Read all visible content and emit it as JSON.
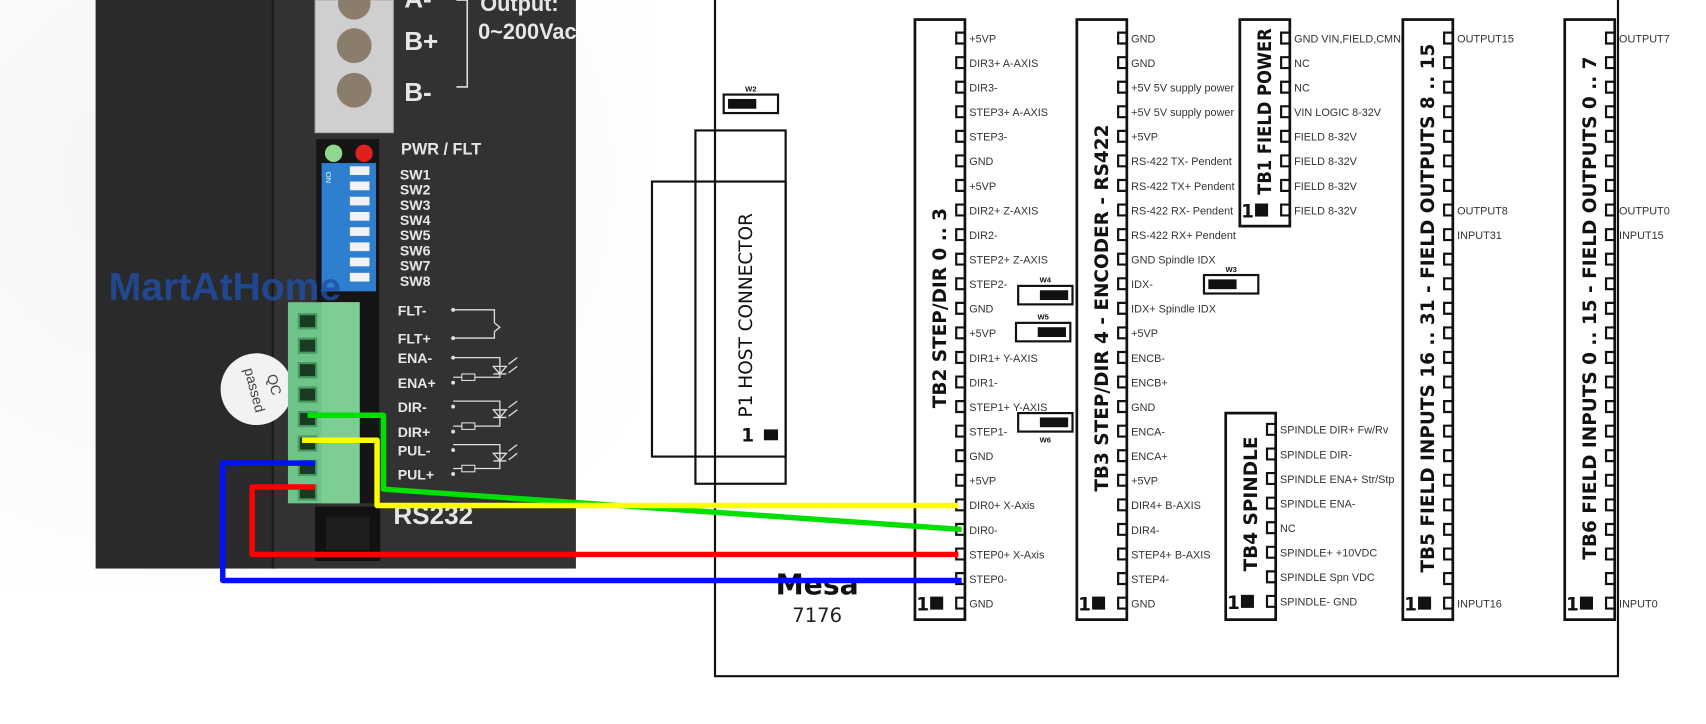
{
  "photo": {
    "terminal_labels": [
      "A-",
      "B+",
      "B-"
    ],
    "output_label": "Output:",
    "output_value": "0~200Vac",
    "led_label": "PWR / FLT",
    "dip_on": "ON",
    "dip_switches": [
      "SW1",
      "SW2",
      "SW3",
      "SW4",
      "SW5",
      "SW6",
      "SW7",
      "SW8"
    ],
    "watermark": "MartAtHome",
    "qc_sticker": [
      "QC",
      "passed"
    ],
    "signal_labels": [
      "FLT-",
      "FLT+",
      "ENA-",
      "ENA+",
      "DIR-",
      "DIR+",
      "PUL-",
      "PUL+"
    ],
    "port_label": "RS232",
    "colors": {
      "body": "#2b2b2d",
      "connector": "#6fc48a",
      "dip": "#2f7fd0",
      "led_power": "#8fd88f",
      "led_fault": "#e02020"
    }
  },
  "board": {
    "logo": "Mesa",
    "model": "7176",
    "p1": {
      "title": "P1 HOST CONNECTOR",
      "pin1": "1"
    },
    "jumpers": {
      "w2": "W2",
      "w3": "W3",
      "w4": "W4",
      "w5": "W5",
      "w6": "W6"
    },
    "pin1_marker": "1",
    "blocks": [
      {
        "id": "TB2",
        "title": "TB2  STEP/DIR 0 .. 3",
        "pins": [
          "+5VP",
          "DIR3+  A-AXIS",
          "DIR3-",
          "STEP3+ A-AXIS",
          "STEP3-",
          "GND",
          "+5VP",
          "DIR2+  Z-AXIS",
          "DIR2-",
          "STEP2+ Z-AXIS",
          "STEP2-",
          "GND",
          "+5VP",
          "DIR1+  Y-AXIS",
          "DIR1-",
          "STEP1+ Y-AXIS",
          "STEP1-",
          "GND",
          "+5VP",
          "DIR0+  X-Axis",
          "DIR0-",
          "STEP0+ X-Axis",
          "STEP0-",
          "GND"
        ]
      },
      {
        "id": "TB3",
        "title": "TB3  STEP/DIR 4  -  ENCODER  -  RS422",
        "pins": [
          "GND",
          "GND",
          "+5V 5V supply power",
          "+5V 5V supply power",
          "+5VP",
          "RS-422 TX-  Pendent",
          "RS-422 TX+  Pendent",
          "RS-422 RX-  Pendent",
          "RS-422 RX+  Pendent",
          "GND  Spindle IDX",
          "IDX-",
          "IDX+ Spindle IDX",
          "+5VP",
          "ENCB-",
          "ENCB+",
          "GND",
          "ENCA-",
          "ENCA+",
          "+5VP",
          "DIR4+  B-AXIS",
          "DIR4-",
          "STEP4+ B-AXIS",
          "STEP4-",
          "GND"
        ]
      },
      {
        "id": "TB1",
        "title": "TB1  FIELD  POWER",
        "pins": [
          "GND VIN,FIELD,CMN",
          "NC",
          "NC",
          "VIN LOGIC 8-32V",
          "FIELD 8-32V",
          "FIELD 8-32V",
          "FIELD 8-32V",
          "FIELD 8-32V"
        ]
      },
      {
        "id": "TB4",
        "title": "TB4  SPINDLE",
        "pins": [
          "SPINDLE DIR+ Fw/Rv",
          "SPINDLE DIR-",
          " SPINDLE ENA+ Str/Stp",
          "SPINDLE ENA-",
          "NC",
          "SPINDLE+ +10VDC",
          "SPINDLE  Spn VDC",
          "SPINDLE- GND"
        ]
      },
      {
        "id": "TB5",
        "title": "TB5  FIELD  INPUTS  16 .. 31  -  FIELD  OUTPUTS  8 .. 15",
        "pins": [
          "OUTPUT15",
          "",
          "",
          "",
          "",
          "",
          "",
          "OUTPUT8",
          "INPUT31",
          "",
          "",
          "",
          "",
          "",
          "",
          "",
          "",
          "",
          "",
          "",
          "",
          "",
          "",
          "INPUT16"
        ]
      },
      {
        "id": "TB6",
        "title": "TB6  FIELD  INPUTS  0 .. 15  -  FIELD  OUTPUTS  0 .. 7",
        "pins": [
          "OUTPUT7",
          "",
          "",
          "",
          "",
          "",
          "",
          "OUTPUT0",
          "INPUT15",
          "",
          "",
          "",
          "",
          "",
          "",
          "",
          "",
          "",
          "",
          "",
          "",
          "",
          "",
          "INPUT0"
        ]
      }
    ]
  },
  "wires": [
    {
      "from": "DIR-",
      "to": "DIR0-",
      "color": "#00e000"
    },
    {
      "from": "DIR+",
      "to": "DIR0+  X-Axis",
      "color": "#ffff00"
    },
    {
      "from": "PUL-",
      "to": "STEP0-",
      "color": "#0010ff"
    },
    {
      "from": "PUL+",
      "to": "STEP0+ X-Axis",
      "color": "#ff0000"
    }
  ]
}
